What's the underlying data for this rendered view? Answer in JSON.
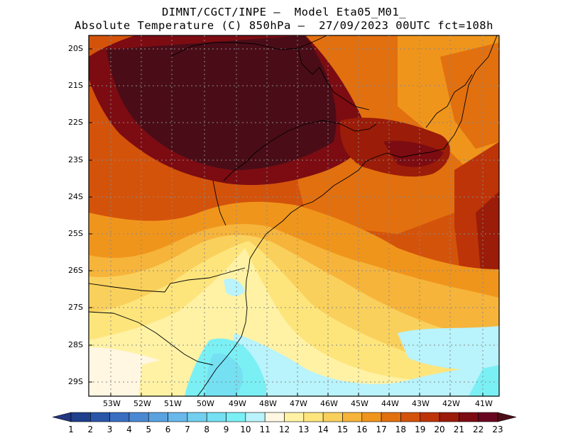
{
  "header": {
    "line1": "DIMNT/CGCT/INPE —  Model Eta05_M01_",
    "line2": "Absolute Temperature (C) 850hPa —  27/09/2023 00UTC fct=108h"
  },
  "axes": {
    "lat_labels": [
      "20S",
      "21S",
      "22S",
      "23S",
      "24S",
      "25S",
      "26S",
      "27S",
      "28S",
      "29S"
    ],
    "lon_labels": [
      "53W",
      "52W",
      "51W",
      "50W",
      "49W",
      "48W",
      "47W",
      "46W",
      "45W",
      "44W",
      "43W",
      "42W",
      "41W"
    ]
  },
  "colorbar": {
    "labels": [
      "1",
      "2",
      "3",
      "4",
      "5",
      "6",
      "7",
      "8",
      "9",
      "10",
      "11",
      "12",
      "13",
      "14",
      "15",
      "16",
      "17",
      "18",
      "19",
      "20",
      "21",
      "22",
      "23"
    ],
    "colors": [
      "#1f3e8c",
      "#2a55a8",
      "#3a6ec0",
      "#4a88d2",
      "#5aa2e0",
      "#68b8ea",
      "#72cfee",
      "#74e0f2",
      "#7af0f5",
      "#b9f3fb",
      "#fff7e2",
      "#fff2a5",
      "#fde57c",
      "#fad05c",
      "#f6b43b",
      "#f0951c",
      "#e2700f",
      "#d4530b",
      "#bd3408",
      "#9b1c08",
      "#7c0c12",
      "#6a0520"
    ],
    "arrow_left": "#22357f",
    "arrow_right": "#4a0d17"
  },
  "colors": {
    "ocean_cyan": "#7af0f5",
    "coast": "#000000"
  }
}
